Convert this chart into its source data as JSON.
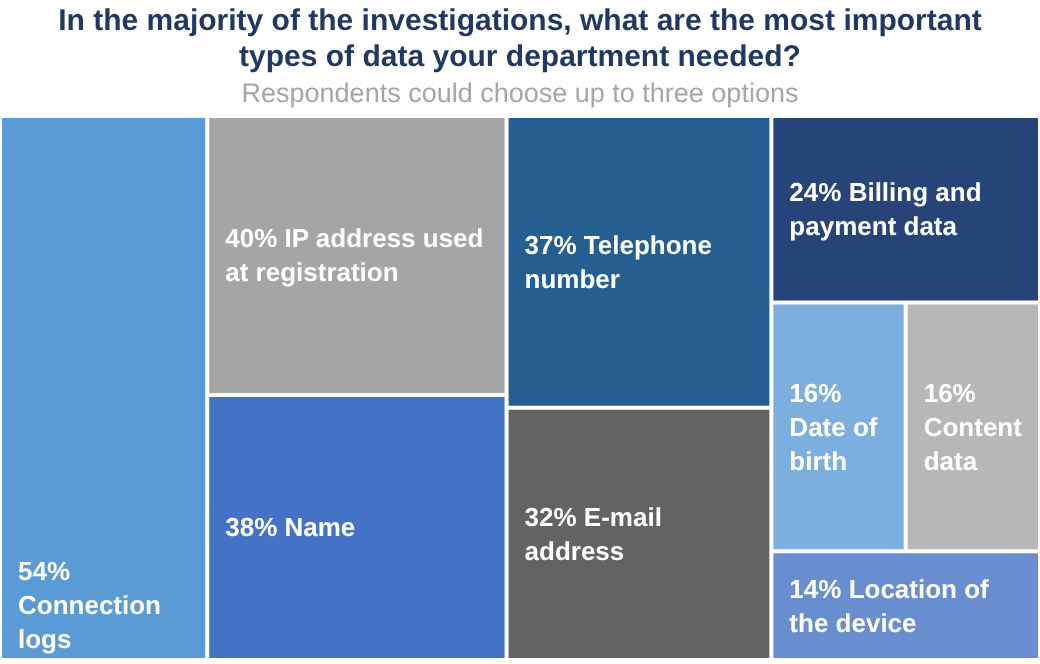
{
  "chart_data": {
    "type": "other",
    "title": "In the majority of the investigations, what are the most important types of data your department needed?",
    "subtitle": "Respondents could choose up to three options",
    "categories": [
      "Connection logs",
      "IP address used at registration",
      "Name",
      "Telephone number",
      "E-mail address",
      "Billing and payment data",
      "Date of birth",
      "Content data",
      "Location of the device"
    ],
    "values": [
      54,
      40,
      38,
      37,
      32,
      24,
      16,
      16,
      14
    ],
    "value_labels": [
      "54%",
      "40%",
      "38%",
      "37%",
      "32%",
      "24%",
      "16%",
      "16%",
      "14%"
    ],
    "colors": [
      "#5b9bd5",
      "#a5a5a5",
      "#4472c4",
      "#255e91",
      "#636363",
      "#264478",
      "#7cafdd",
      "#b7b7b7",
      "#698ed0"
    ]
  }
}
